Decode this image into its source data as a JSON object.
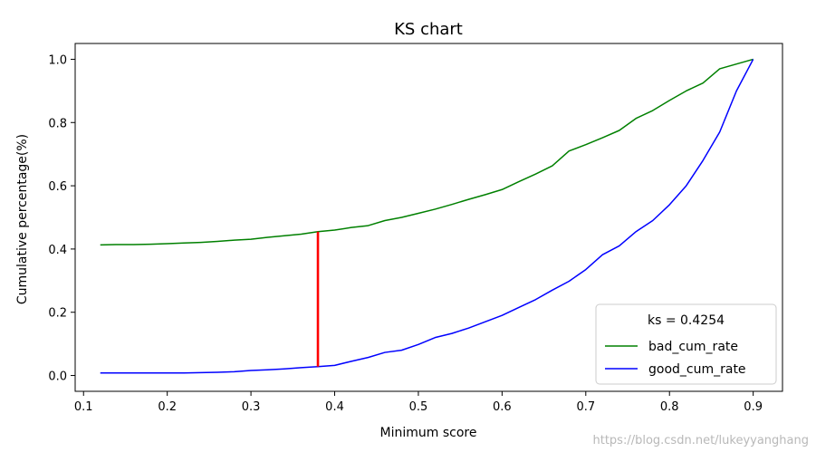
{
  "chart_data": {
    "type": "line",
    "title": "KS chart",
    "xlabel": "Minimum score",
    "ylabel": "Cumulative percentage(%)",
    "xlim": [
      0.09,
      0.935
    ],
    "ylim": [
      -0.05,
      1.05
    ],
    "x_ticks": [
      0.1,
      0.2,
      0.3,
      0.4,
      0.5,
      0.6,
      0.7,
      0.8,
      0.9
    ],
    "x_tick_labels": [
      "0.1",
      "0.2",
      "0.3",
      "0.4",
      "0.5",
      "0.6",
      "0.7",
      "0.8",
      "0.9"
    ],
    "y_ticks": [
      0.0,
      0.2,
      0.4,
      0.6,
      0.8,
      1.0
    ],
    "y_tick_labels": [
      "0.0",
      "0.2",
      "0.4",
      "0.6",
      "0.8",
      "1.0"
    ],
    "grid": false,
    "legend": {
      "title": "ks = 0.4254",
      "placement": "lower-right"
    },
    "series": [
      {
        "name": "bad_cum_rate",
        "color": "#008000",
        "x": [
          0.12,
          0.14,
          0.16,
          0.18,
          0.2,
          0.22,
          0.24,
          0.26,
          0.28,
          0.3,
          0.32,
          0.34,
          0.36,
          0.38,
          0.4,
          0.42,
          0.44,
          0.46,
          0.48,
          0.5,
          0.52,
          0.54,
          0.56,
          0.58,
          0.6,
          0.62,
          0.64,
          0.66,
          0.68,
          0.7,
          0.72,
          0.74,
          0.76,
          0.78,
          0.8,
          0.82,
          0.84,
          0.86,
          0.88,
          0.9
        ],
        "y": [
          0.413,
          0.414,
          0.414,
          0.415,
          0.417,
          0.419,
          0.421,
          0.424,
          0.428,
          0.431,
          0.437,
          0.442,
          0.447,
          0.455,
          0.46,
          0.468,
          0.474,
          0.49,
          0.5,
          0.513,
          0.526,
          0.541,
          0.557,
          0.572,
          0.588,
          0.613,
          0.637,
          0.663,
          0.71,
          0.73,
          0.752,
          0.775,
          0.813,
          0.838,
          0.87,
          0.9,
          0.925,
          0.97,
          0.985,
          1.0
        ]
      },
      {
        "name": "good_cum_rate",
        "color": "#0000ff",
        "x": [
          0.12,
          0.14,
          0.16,
          0.18,
          0.2,
          0.22,
          0.24,
          0.26,
          0.28,
          0.3,
          0.32,
          0.34,
          0.36,
          0.38,
          0.4,
          0.42,
          0.44,
          0.46,
          0.48,
          0.5,
          0.52,
          0.54,
          0.56,
          0.58,
          0.6,
          0.62,
          0.64,
          0.66,
          0.68,
          0.7,
          0.72,
          0.74,
          0.76,
          0.78,
          0.8,
          0.82,
          0.84,
          0.86,
          0.88,
          0.9
        ],
        "y": [
          0.008,
          0.008,
          0.008,
          0.008,
          0.008,
          0.008,
          0.009,
          0.01,
          0.012,
          0.016,
          0.018,
          0.021,
          0.025,
          0.028,
          0.032,
          0.045,
          0.057,
          0.073,
          0.08,
          0.098,
          0.12,
          0.133,
          0.15,
          0.17,
          0.19,
          0.215,
          0.24,
          0.27,
          0.298,
          0.335,
          0.382,
          0.41,
          0.455,
          0.49,
          0.54,
          0.6,
          0.68,
          0.77,
          0.9,
          1.0
        ]
      }
    ],
    "ks_line": {
      "x": 0.38,
      "y_low": 0.028,
      "y_high": 0.455,
      "color": "#ff0000"
    }
  },
  "watermark": "https://blog.csdn.net/lukeyyanghang"
}
